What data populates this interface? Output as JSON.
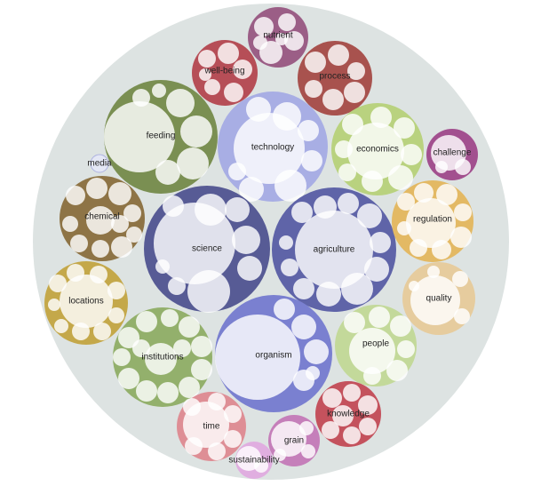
{
  "diagram": {
    "type": "circle-packing",
    "root_color": "#dde3e2",
    "clusters": [
      {
        "id": "nutrient",
        "label": "nutrient",
        "color": "#9b5e86"
      },
      {
        "id": "well-being",
        "label": "well-being",
        "color": "#b64e57"
      },
      {
        "id": "process",
        "label": "process",
        "color": "#a8524e"
      },
      {
        "id": "feeding",
        "label": "feeding",
        "color": "#7a8f52"
      },
      {
        "id": "technology",
        "label": "technology",
        "color": "#a8aee4"
      },
      {
        "id": "economics",
        "label": "economics",
        "color": "#b9d27f"
      },
      {
        "id": "challenge",
        "label": "challenge",
        "color": "#a2508f"
      },
      {
        "id": "media",
        "label": "media",
        "color": "#aeb2e0"
      },
      {
        "id": "chemical",
        "label": "chemical",
        "color": "#8e7446"
      },
      {
        "id": "science",
        "label": "science",
        "color": "#575b95"
      },
      {
        "id": "agriculture",
        "label": "agriculture",
        "color": "#5f64a8"
      },
      {
        "id": "regulation",
        "label": "regulation",
        "color": "#e3b964"
      },
      {
        "id": "locations",
        "label": "locations",
        "color": "#c4a84a"
      },
      {
        "id": "quality",
        "label": "quality",
        "color": "#e6cc9e"
      },
      {
        "id": "institutions",
        "label": "institutions",
        "color": "#93b06c"
      },
      {
        "id": "organism",
        "label": "organism",
        "color": "#7a80d0"
      },
      {
        "id": "people",
        "label": "people",
        "color": "#c3d99a"
      },
      {
        "id": "knowledge",
        "label": "knowledge",
        "color": "#c4525d"
      },
      {
        "id": "time",
        "label": "time",
        "color": "#de8e95"
      },
      {
        "id": "grain",
        "label": "grain",
        "color": "#c57fba"
      },
      {
        "id": "sustainability",
        "label": "sustainability",
        "color": "#e0aee0"
      }
    ]
  }
}
